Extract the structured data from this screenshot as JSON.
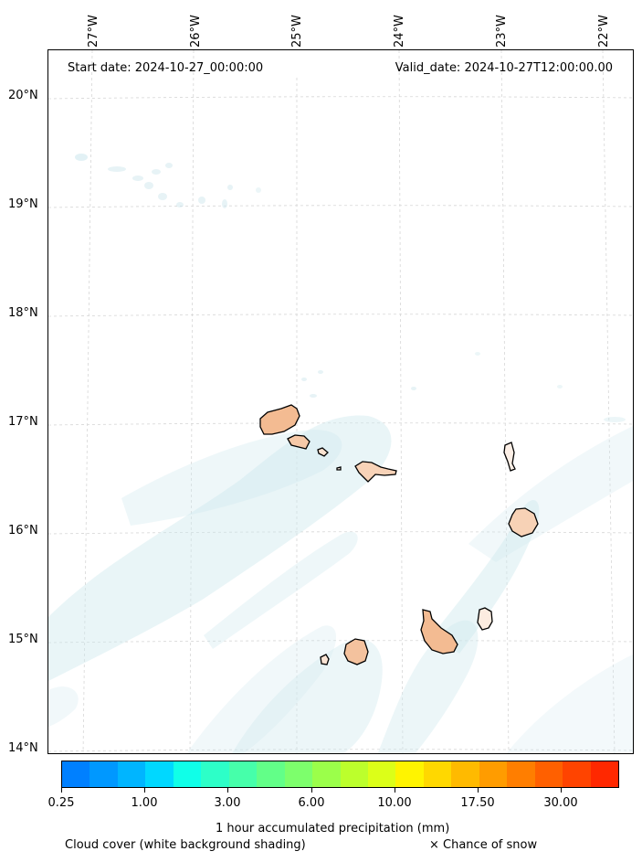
{
  "map": {
    "start_date": "Start date: 2024-10-27_00:00:00",
    "valid_date": "Valid_date: 2024-10-27T12:00:00.00",
    "lon_labels": [
      "27°W",
      "26°W",
      "25°W",
      "24°W",
      "23°W",
      "22°W"
    ],
    "lat_labels": [
      "20°N",
      "19°N",
      "18°N",
      "17°N",
      "16°N",
      "15°N",
      "14°N"
    ],
    "cloud_color": "#cfe8ee",
    "land_fill": "#f3bb92",
    "coast_color": "#000000"
  },
  "colorbar": {
    "colors": [
      "#0080ff",
      "#0098ff",
      "#00b5ff",
      "#00d8ff",
      "#10ffe8",
      "#2dffc8",
      "#46ffaa",
      "#62ff88",
      "#7dff6c",
      "#9bff4a",
      "#bcff2c",
      "#dcff18",
      "#fff400",
      "#ffd800",
      "#ffba00",
      "#ff9c00",
      "#ff7e00",
      "#ff6000",
      "#ff4400",
      "#ff2800"
    ],
    "tick_labels": [
      "0.25",
      "1.00",
      "3.00",
      "6.00",
      "10.00",
      "17.50",
      "30.00"
    ],
    "label": "1 hour accumulated precipitation (mm)"
  },
  "legend": {
    "cloud_note": "Cloud cover (white background shading)",
    "snow_note": "× Chance of snow"
  }
}
